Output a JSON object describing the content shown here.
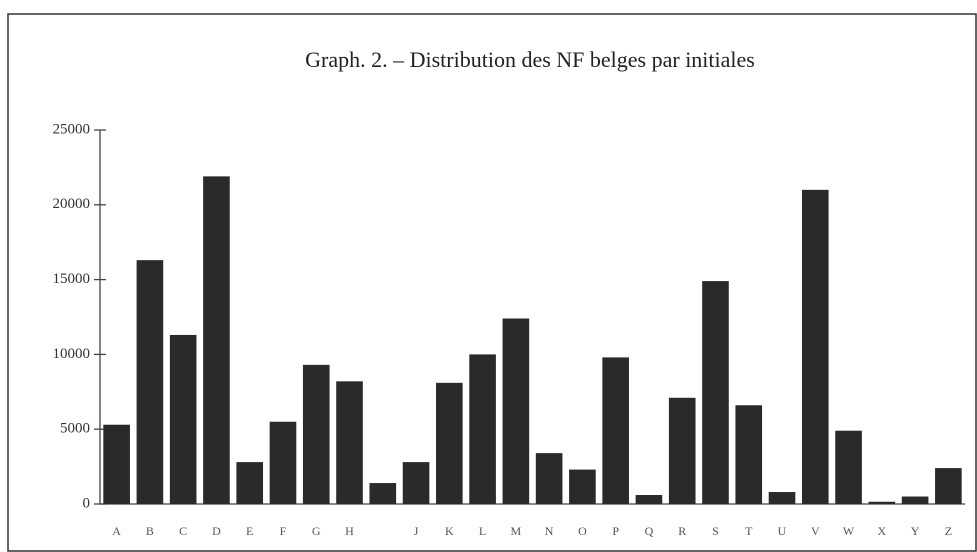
{
  "chart_data": {
    "type": "bar",
    "title": "Graph. 2. – Distribution des NF belges par initiales",
    "categories": [
      "A",
      "B",
      "C",
      "D",
      "E",
      "F",
      "G",
      "H",
      null,
      "J",
      "K",
      "L",
      "M",
      "N",
      "O",
      "P",
      "Q",
      "R",
      "S",
      "T",
      "U",
      "V",
      "W",
      "X",
      "Y",
      "Z"
    ],
    "values": [
      5300,
      16300,
      11300,
      21900,
      2800,
      5500,
      9300,
      8200,
      1400,
      2800,
      8100,
      10000,
      12400,
      3400,
      2300,
      9800,
      600,
      7100,
      14900,
      6600,
      800,
      21000,
      4900,
      150,
      500,
      2400
    ],
    "color": "#2a2a2a",
    "ylim": [
      0,
      25000
    ],
    "yticks": [
      0,
      5000,
      10000,
      15000,
      20000,
      25000
    ],
    "grid": false
  }
}
